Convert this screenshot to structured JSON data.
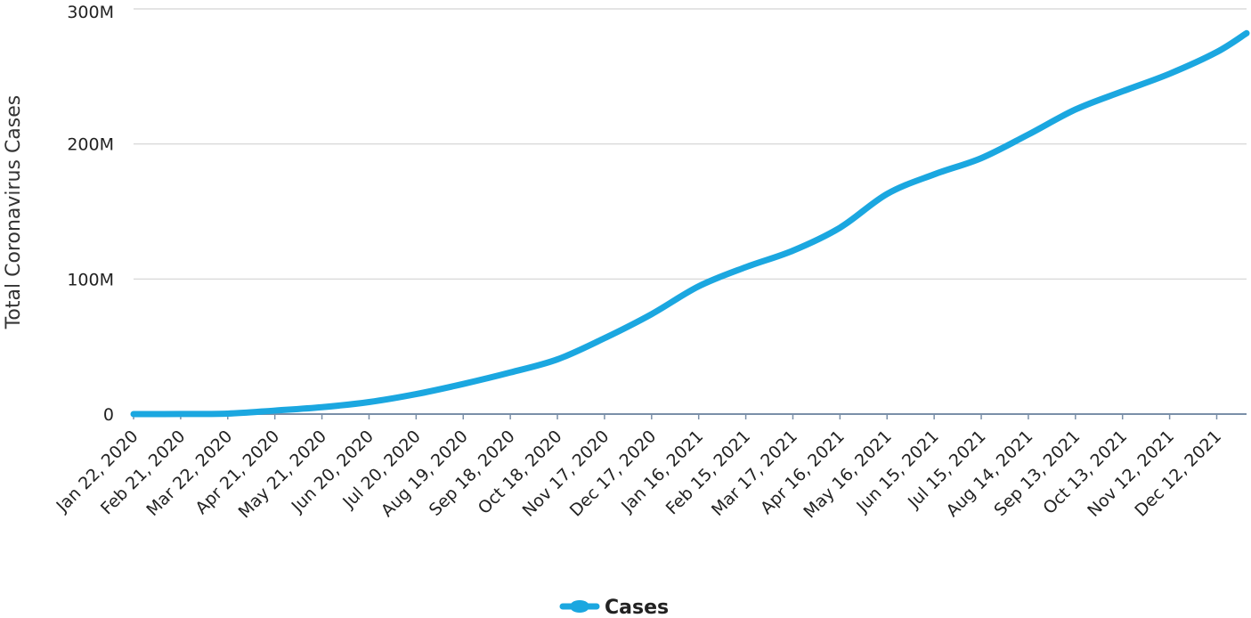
{
  "chart_data": {
    "type": "line",
    "ylabel": "Total Coronavirus Cases",
    "xlabel": "",
    "ylim": [
      0,
      300000000
    ],
    "y_ticks": [
      {
        "value": 0,
        "label": "0"
      },
      {
        "value": 100000000,
        "label": "100M"
      },
      {
        "value": 200000000,
        "label": "200M"
      },
      {
        "value": 300000000,
        "label": "300M"
      }
    ],
    "x_ticks": [
      "Jan 22, 2020",
      "Feb 21, 2020",
      "Mar 22, 2020",
      "Apr 21, 2020",
      "May 21, 2020",
      "Jun 20, 2020",
      "Jul 20, 2020",
      "Aug 19, 2020",
      "Sep 18, 2020",
      "Oct 18, 2020",
      "Nov 17, 2020",
      "Dec 17, 2020",
      "Jan 16, 2021",
      "Feb 15, 2021",
      "Mar 17, 2021",
      "Apr 16, 2021",
      "May 16, 2021",
      "Jun 15, 2021",
      "Jul 15, 2021",
      "Aug 14, 2021",
      "Sep 13, 2021",
      "Oct 13, 2021",
      "Nov 12, 2021",
      "Dec 12, 2021"
    ],
    "grid": true,
    "legend_position": "bottom-center",
    "series": [
      {
        "name": "Cases",
        "color": "#1ba7e0",
        "x": [
          "Jan 22, 2020",
          "Feb 21, 2020",
          "Mar 22, 2020",
          "Apr 21, 2020",
          "May 21, 2020",
          "Jun 20, 2020",
          "Jul 20, 2020",
          "Aug 19, 2020",
          "Sep 18, 2020",
          "Oct 18, 2020",
          "Nov 17, 2020",
          "Dec 17, 2020",
          "Jan 16, 2021",
          "Feb 15, 2021",
          "Mar 17, 2021",
          "Apr 16, 2021",
          "May 16, 2021",
          "Jun 15, 2021",
          "Jul 15, 2021",
          "Aug 14, 2021",
          "Sep 13, 2021",
          "Oct 13, 2021",
          "Nov 12, 2021",
          "Dec 12, 2021",
          "Dec 31, 2021"
        ],
        "values": [
          600,
          80000,
          340000,
          2600000,
          5100000,
          8900000,
          14800000,
          22300000,
          30800000,
          40500000,
          56200000,
          74000000,
          94600000,
          108800000,
          121000000,
          138000000,
          163000000,
          177500000,
          189500000,
          207000000,
          225500000,
          239000000,
          252000000,
          268000000,
          282000000
        ]
      }
    ]
  }
}
